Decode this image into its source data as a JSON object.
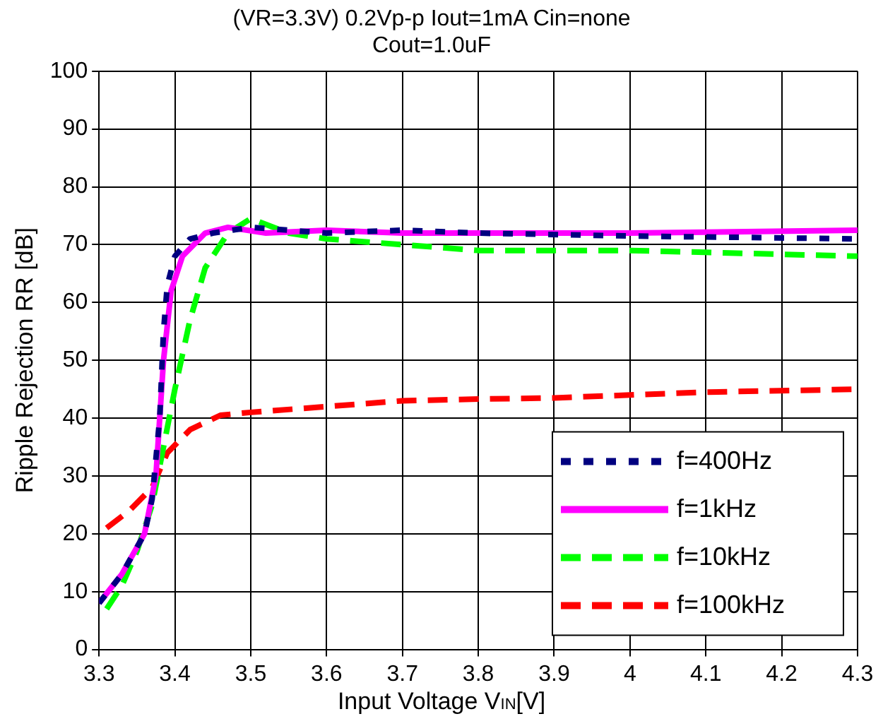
{
  "chart_data": {
    "type": "line",
    "title": "(VR=3.3V) 0.2Vp-p Iout=1mA Cin=none",
    "subtitle": "Cout=1.0uF",
    "xlabel": "Input Voltage V$_{IN}$[V]",
    "ylabel": "Ripple Rejection RR [dB]",
    "xlim": [
      3.3,
      4.3
    ],
    "xticks": [
      3.3,
      3.4,
      3.5,
      3.6,
      3.7,
      3.8,
      3.9,
      4,
      4.1,
      4.2,
      4.3
    ],
    "ylim": [
      0,
      100
    ],
    "yticks": [
      0,
      10,
      20,
      30,
      40,
      50,
      60,
      70,
      80,
      90,
      100
    ],
    "grid": true,
    "legend": "bottom right",
    "marker": "none",
    "series": [
      {
        "name": "f=400Hz",
        "color": "#000080",
        "line_style": "dotted",
        "x": [
          3.3,
          3.33,
          3.36,
          3.37,
          3.38,
          3.385,
          3.39,
          3.4,
          3.42,
          3.45,
          3.5,
          3.6,
          3.7,
          3.8,
          4.0,
          4.3
        ],
        "values": [
          8,
          13,
          20,
          26,
          40,
          55,
          63,
          68,
          71,
          72,
          73,
          72,
          72.5,
          72,
          71.5,
          71
        ]
      },
      {
        "name": "f=1kHz",
        "color": "#ff00ff",
        "line_style": "solid",
        "x": [
          3.3,
          3.33,
          3.36,
          3.375,
          3.385,
          3.395,
          3.41,
          3.44,
          3.47,
          3.52,
          3.6,
          3.7,
          3.8,
          4.0,
          4.3
        ],
        "values": [
          8,
          13,
          20,
          30,
          50,
          62,
          68,
          72,
          73,
          72,
          72.5,
          72,
          72,
          72,
          72.5
        ]
      },
      {
        "name": "f=10kHz",
        "color": "#00ff00",
        "line_style": "dashed",
        "x": [
          3.31,
          3.33,
          3.35,
          3.37,
          3.385,
          3.4,
          3.42,
          3.44,
          3.47,
          3.5,
          3.55,
          3.6,
          3.7,
          3.8,
          4.0,
          4.3
        ],
        "values": [
          7,
          11,
          17,
          25,
          35,
          45,
          57,
          66,
          72,
          74.5,
          72,
          71,
          70,
          69,
          69,
          68
        ]
      },
      {
        "name": "f=100kHz",
        "color": "#ff0000",
        "line_style": "dashed",
        "x": [
          3.31,
          3.34,
          3.37,
          3.39,
          3.42,
          3.46,
          3.5,
          3.6,
          3.7,
          3.8,
          3.9,
          4.0,
          4.1,
          4.3
        ],
        "values": [
          21,
          24,
          28,
          34,
          38,
          40.5,
          41,
          42,
          43,
          43.3,
          43.5,
          44,
          44.5,
          45
        ]
      }
    ]
  }
}
